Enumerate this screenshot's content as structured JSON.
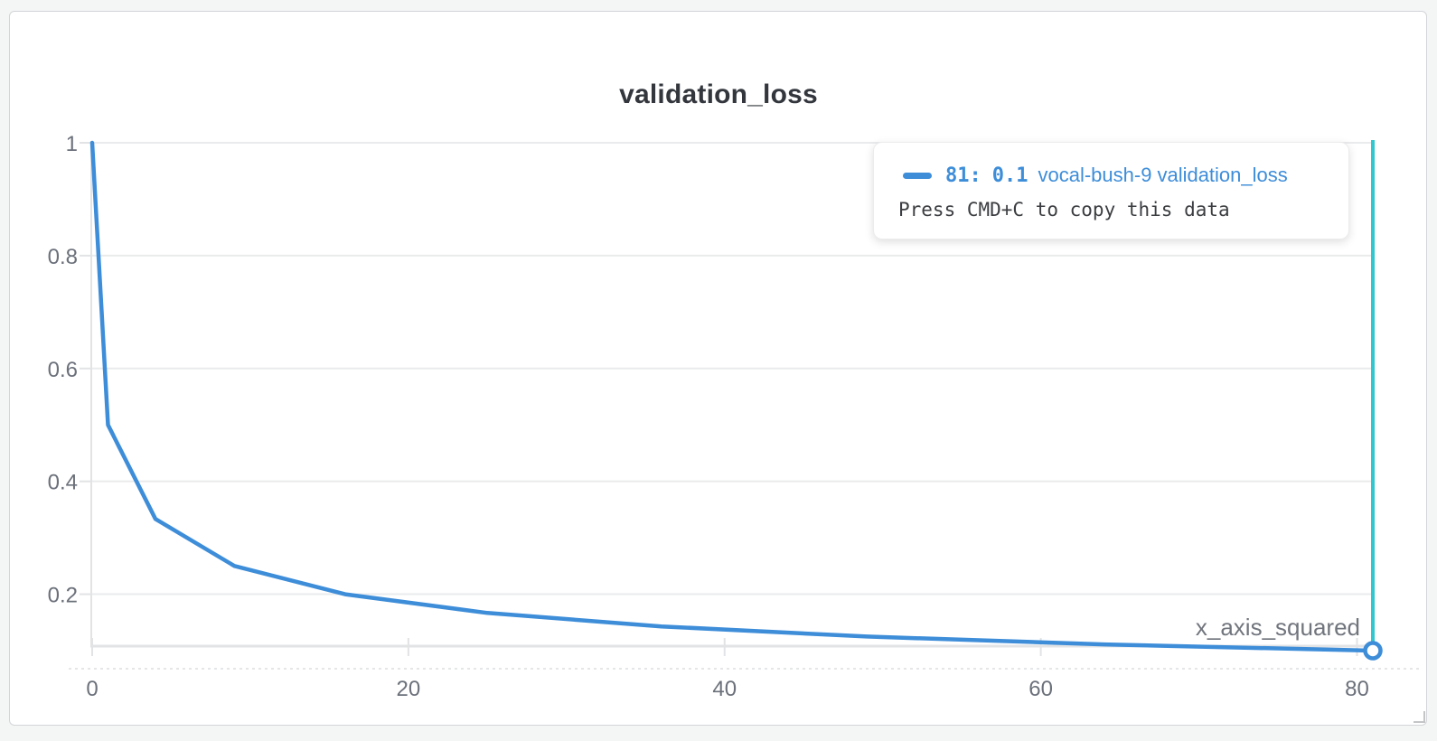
{
  "panel": {
    "title": "validation_loss"
  },
  "tooltip": {
    "step_label": "81:",
    "value": "0.1",
    "run_name": "vocal-bush-9",
    "metric_name": "validation_loss",
    "hint": "Press CMD+C to copy this data",
    "swatch_color": "#3d8dd9"
  },
  "chart_data": {
    "type": "line",
    "title": "validation_loss",
    "xlabel": "x_axis_squared",
    "ylabel": "",
    "series": [
      {
        "name": "vocal-bush-9 validation_loss",
        "color": "#3d8dd9",
        "x": [
          0,
          1,
          4,
          9,
          16,
          25,
          36,
          49,
          64,
          81
        ],
        "y": [
          1,
          0.5,
          0.3333,
          0.25,
          0.2,
          0.1667,
          0.1429,
          0.125,
          0.1111,
          0.1
        ]
      }
    ],
    "xticks": [
      0,
      20,
      40,
      60,
      80
    ],
    "yticks": [
      0.2,
      0.4,
      0.6,
      0.8,
      1
    ],
    "ytick_labels": [
      "0.2",
      "0.4",
      "0.6",
      "0.8",
      "1"
    ],
    "xlim": [
      0,
      81
    ],
    "ylim": [
      0.1,
      1.0
    ],
    "grid": "horizontal",
    "legend_position": "none",
    "crosshair": {
      "x": 81,
      "color": "#30c7ce"
    },
    "highlight_point": {
      "x": 81,
      "y": 0.1
    },
    "colors": {
      "gridline": "#eaebec",
      "axis_line": "#e2e3e5",
      "tick_label": "#6b707a",
      "axis_label": "#71757d",
      "dashed_line": "#dcdde0"
    }
  }
}
